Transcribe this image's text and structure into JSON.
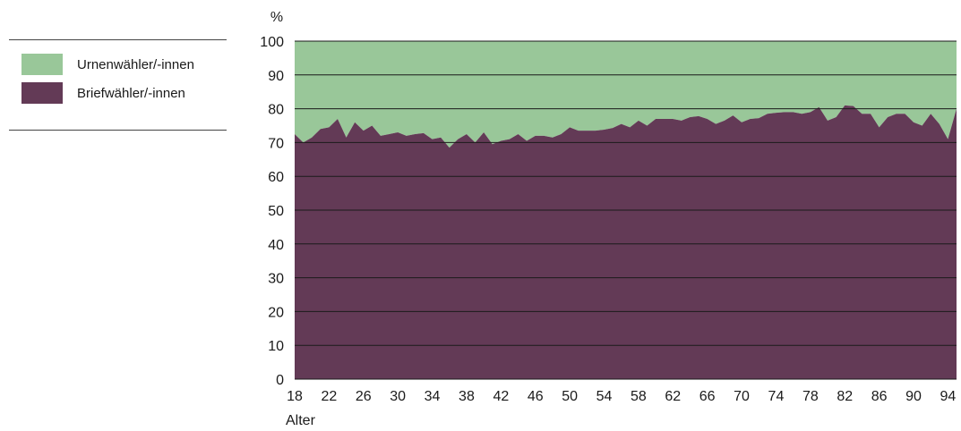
{
  "legend": {
    "items": [
      {
        "label": "Urnenwähler/-innen",
        "color": "#99c799"
      },
      {
        "label": "Briefwähler/-innen",
        "color": "#633a56"
      }
    ]
  },
  "chart_data": {
    "type": "area",
    "ylabel": "%",
    "xlabel": "Alter",
    "xlim": [
      18,
      95
    ],
    "ylim": [
      0,
      100
    ],
    "x_ticks": [
      18,
      22,
      26,
      30,
      34,
      38,
      42,
      46,
      50,
      54,
      58,
      62,
      66,
      70,
      74,
      78,
      82,
      86,
      90,
      94
    ],
    "y_ticks": [
      0,
      10,
      20,
      30,
      40,
      50,
      60,
      70,
      80,
      90,
      100
    ],
    "grid": "horizontal",
    "legend_position": "left",
    "stacked": true,
    "x": [
      18,
      19,
      20,
      21,
      22,
      23,
      24,
      25,
      26,
      27,
      28,
      29,
      30,
      31,
      32,
      33,
      34,
      35,
      36,
      37,
      38,
      39,
      40,
      41,
      42,
      43,
      44,
      45,
      46,
      47,
      48,
      49,
      50,
      51,
      52,
      53,
      54,
      55,
      56,
      57,
      58,
      59,
      60,
      61,
      62,
      63,
      64,
      65,
      66,
      67,
      68,
      69,
      70,
      71,
      72,
      73,
      74,
      75,
      76,
      77,
      78,
      79,
      80,
      81,
      82,
      83,
      84,
      85,
      86,
      87,
      88,
      89,
      90,
      91,
      92,
      93,
      94,
      95
    ],
    "series": [
      {
        "name": "Briefwähler/-innen",
        "color": "#633a56",
        "values": [
          72.5,
          70,
          71.5,
          74,
          74.5,
          77,
          71.5,
          76,
          73.5,
          75,
          72,
          72.5,
          73,
          72,
          72.5,
          72.8,
          71,
          71.5,
          68.5,
          71,
          72.5,
          70,
          73,
          69.5,
          70.5,
          71,
          72.5,
          70.5,
          72,
          72,
          71.5,
          72.5,
          74.5,
          73.5,
          73.5,
          73.5,
          73.8,
          74.3,
          75.5,
          74.5,
          76.5,
          75,
          77,
          77,
          77,
          76.5,
          77.5,
          77.8,
          77,
          75.5,
          76.5,
          78,
          76,
          77,
          77.2,
          78.5,
          78.8,
          79,
          79,
          78.5,
          79,
          80.5,
          76.5,
          77.5,
          81,
          80.8,
          78.5,
          78.5,
          74.5,
          77.5,
          78.5,
          78.5,
          76,
          75,
          78.5,
          75.5,
          71,
          80
        ]
      },
      {
        "name": "Urnenwähler/-innen",
        "color": "#99c799",
        "values": [
          27.5,
          30,
          28.5,
          26,
          25.5,
          23,
          28.5,
          24,
          26.5,
          25,
          28,
          27.5,
          27,
          28,
          27.5,
          27.2,
          29,
          28.5,
          31.5,
          29,
          27.5,
          30,
          27,
          30.5,
          29.5,
          29,
          27.5,
          29.5,
          28,
          28,
          28.5,
          27.5,
          25.5,
          26.5,
          26.5,
          26.5,
          26.2,
          25.7,
          24.5,
          25.5,
          23.5,
          25,
          23,
          23,
          23,
          23.5,
          22.5,
          22.2,
          23,
          24.5,
          23.5,
          22,
          24,
          23,
          22.8,
          21.5,
          21.2,
          21,
          21,
          21.5,
          21,
          19.5,
          23.5,
          22.5,
          19,
          19.2,
          21.5,
          21.5,
          25.5,
          22.5,
          21.5,
          21.5,
          24,
          25,
          21.5,
          24.5,
          29,
          20
        ]
      }
    ]
  }
}
